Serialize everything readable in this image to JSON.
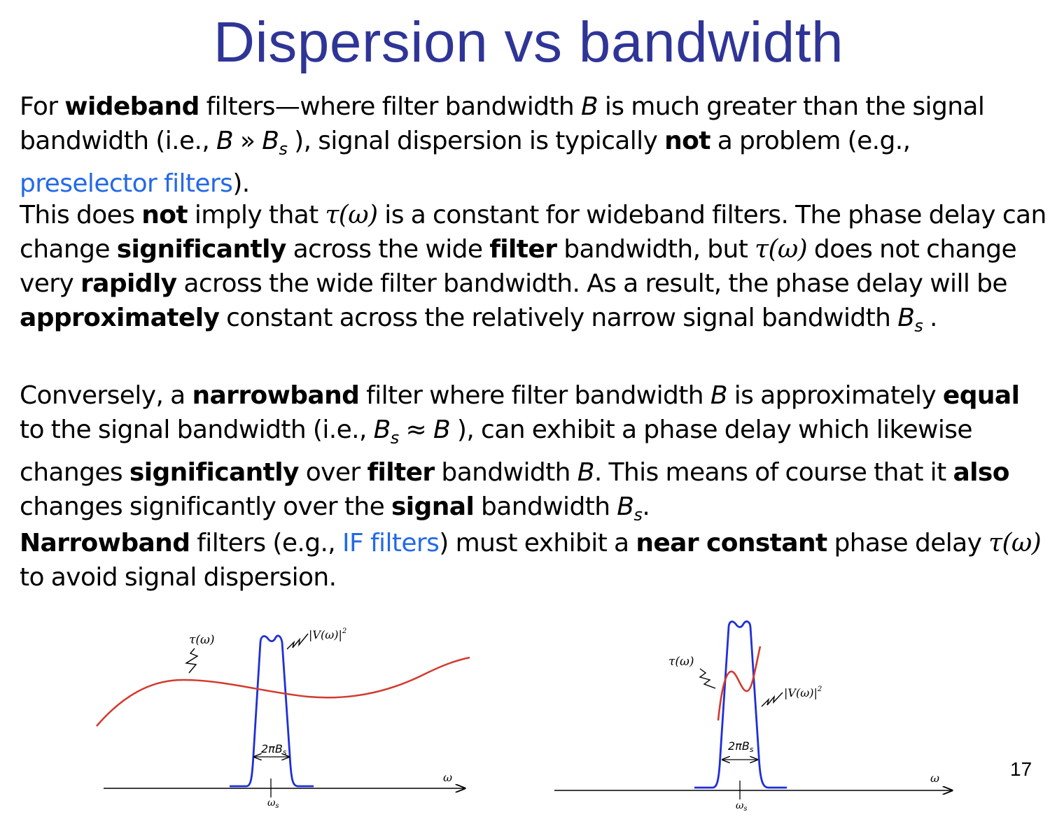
{
  "title": "Dispersion vs bandwidth",
  "page_number": "17",
  "paragraphs": {
    "p1": {
      "s1": "For ",
      "b1": "wideband",
      "s2": " filters—where filter bandwidth ",
      "var_b": "B",
      "s3": " is much greater than the signal bandwidth (i.e., ",
      "var_b2": "B",
      "op": " » ",
      "var_bs": "B",
      "sub_s": "s",
      "s4": " ), signal dispersion is typically ",
      "b2": "not",
      "s5": " a problem (e.g., ",
      "link": "preselector filters",
      "s6": ")."
    },
    "p2": {
      "s1": "This does ",
      "b1": "not",
      "s2": " imply that ",
      "tau": "τ(ω)",
      "s3": " is a constant for wideband filters.  The phase delay can change ",
      "b2": "significantly",
      "s4": " across the wide ",
      "b3": "filter",
      "s5": " bandwidth, but ",
      "tau2": "τ(ω)",
      "s6": " does not  change very ",
      "b4": "rapidly",
      "s7": " across the wide filter bandwidth.  As a result, the phase delay will be ",
      "b5": "approximately",
      "s8": " constant across the relatively narrow signal bandwidth ",
      "var_bs": "B",
      "sub_s": "s",
      "s9": " ."
    },
    "p3": {
      "s1": "Conversely, a ",
      "b1": "narrowband",
      "s2": " filter where filter bandwidth ",
      "var_b": "B",
      "s3": " is approximately ",
      "b2": "equal",
      "s4": " to the signal bandwidth (i.e., ",
      "var_bs": "B",
      "sub_s": "s",
      "approx": " ≈ ",
      "var_b2": "B",
      "s5": " ), can exhibit a phase delay which likewise changes ",
      "b3": "significantly",
      "s6": " over ",
      "b4": "filter",
      "s7": " bandwidth ",
      "var_b3": "B",
      "s8": ".  This means of course that it ",
      "b5": "also",
      "s9": " changes significantly over the ",
      "b6": "signal",
      "s10": " bandwidth ",
      "var_bs2": "B",
      "sub_s2": "s",
      "s11": "."
    },
    "p4": {
      "b1": "Narrowband",
      "s1": " filters (e.g., ",
      "link": "IF filters",
      "s2": ") must exhibit a ",
      "b2": "near constant",
      "s3": " phase delay ",
      "tau": "τ(ω)",
      "s4": " to avoid signal dispersion."
    }
  },
  "figures": {
    "colors": {
      "magnitude": "#1f2fd8",
      "delay": "#d23a2e",
      "axis": "#000000"
    },
    "left": {
      "tau_label": "τ(ω)",
      "mag_label": "|V(ω)|",
      "mag_sup": "2",
      "bw_label": "2πB",
      "bw_sub": "s",
      "x_label": "ω",
      "center_label": "ω",
      "center_sub": "s"
    },
    "right": {
      "tau_label": "τ(ω)",
      "mag_label": "|V(ω)|",
      "mag_sup": "2",
      "bw_label": "2πB",
      "bw_sub": "s",
      "x_label": "ω",
      "center_label": "ω",
      "center_sub": "s"
    }
  }
}
